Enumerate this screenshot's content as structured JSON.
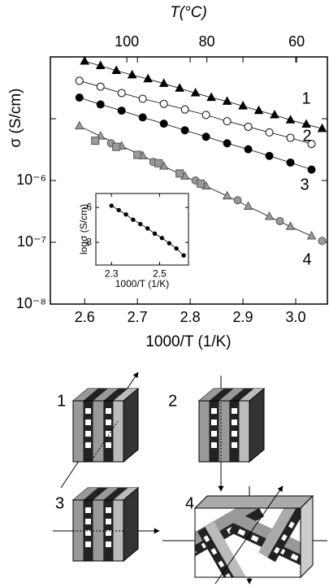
{
  "chart_data": [
    {
      "type": "scatter",
      "ylog": true,
      "xlabel": "1000/T (1/K)",
      "ylabel": "σ (S/cm)",
      "xlim": [
        2.535,
        3.06
      ],
      "ylim": [
        1e-08,
        0.0001
      ],
      "xticks": [
        2.6,
        2.7,
        2.8,
        2.9,
        {
          "value": 3,
          "label": "3.0"
        }
      ],
      "yticks": [
        {
          "value": 1e-08,
          "label": "10⁻⁸"
        },
        {
          "value": 1e-07,
          "label": "10⁻⁷"
        },
        {
          "value": 1e-06,
          "label": "10⁻⁶"
        },
        {
          "value": 1e-05,
          "label": null
        },
        {
          "value": 0.0001,
          "label": null
        }
      ],
      "top_axis": {
        "label": "T(°C)",
        "ticks": [
          100,
          80,
          60
        ]
      },
      "series": [
        {
          "name": "1",
          "color": "#000000",
          "marker": "triangle",
          "filled": true,
          "line": true,
          "x": [
            2.6,
            2.63,
            2.66,
            2.69,
            2.72,
            2.75,
            2.78,
            2.81,
            2.84,
            2.87,
            2.9,
            2.93,
            2.96,
            2.99,
            3.02,
            3.05
          ],
          "values": [
            8.5e-05,
            7.2e-05,
            6e-05,
            5.1e-05,
            4.4e-05,
            3.7e-05,
            3.1e-05,
            2.6e-05,
            2.2e-05,
            1.9e-05,
            1.6e-05,
            1.35e-05,
            1.15e-05,
            9.5e-06,
            8.1e-06,
            6.9e-06
          ]
        },
        {
          "name": "2",
          "color": "#000000",
          "marker": "circle",
          "filled": false,
          "line": true,
          "x": [
            2.59,
            2.63,
            2.67,
            2.71,
            2.75,
            2.79,
            2.83,
            2.87,
            2.91,
            2.95,
            2.99,
            3.03
          ],
          "values": [
            4.1e-05,
            3.3e-05,
            2.6e-05,
            2.1e-05,
            1.74e-05,
            1.41e-05,
            1.15e-05,
            9.1e-06,
            7.4e-06,
            6e-06,
            4.9e-06,
            3.9e-06
          ]
        },
        {
          "name": "3",
          "color": "#000000",
          "marker": "circle",
          "filled": true,
          "line": true,
          "x": [
            2.59,
            2.63,
            2.67,
            2.71,
            2.75,
            2.79,
            2.83,
            2.87,
            2.91,
            2.95,
            2.99,
            3.03
          ],
          "values": [
            2.2e-05,
            1.7e-05,
            1.35e-05,
            1.05e-05,
            8.3e-06,
            6.5e-06,
            5.1e-06,
            4e-06,
            3.2e-06,
            2.5e-06,
            1.95e-06,
            1.5e-06
          ]
        },
        {
          "name": "4",
          "color": "#999999",
          "marker": "triangle",
          "filled": true,
          "line": true,
          "x": [
            2.59,
            2.63,
            2.67,
            2.71,
            2.75,
            2.79,
            2.83,
            2.87,
            2.91,
            2.95,
            2.99,
            3.03
          ],
          "values": [
            7.6e-06,
            5.2e-06,
            3.6e-06,
            2.5e-06,
            1.7e-06,
            1.17e-06,
            8.1e-07,
            5.6e-07,
            3.8e-07,
            2.6e-07,
            1.8e-07,
            1.26e-07
          ]
        },
        {
          "color": "#999999",
          "marker": "circle",
          "filled": true,
          "line": false,
          "x": [
            2.65,
            2.73,
            2.81,
            2.89,
            2.97,
            3.05
          ],
          "values": [
            4e-06,
            2e-06,
            1e-06,
            4.8e-07,
            2.2e-07,
            1.05e-07
          ]
        },
        {
          "color": "#999999",
          "marker": "square",
          "filled": true,
          "line": false,
          "x": [
            2.62,
            2.66,
            2.7,
            2.74,
            2.78,
            2.82
          ],
          "values": [
            4.4e-06,
            3.5e-06,
            2.6e-06,
            1.9e-06,
            1.3e-06,
            8.9e-07
          ]
        }
      ]
    },
    {
      "type": "scatter",
      "ylog": false,
      "xlabel": "1000/T (1/K)",
      "ylabel": "logσ (S/cm)",
      "xlim": [
        2.235,
        2.62
      ],
      "ylim": [
        -9.3,
        -5.2
      ],
      "xticks": [
        2.3,
        2.5
      ],
      "yticks": [
        -6,
        -8
      ],
      "series": [
        {
          "color": "#000000",
          "marker": "circle",
          "filled": true,
          "line": true,
          "x": [
            2.3,
            2.33,
            2.36,
            2.39,
            2.42,
            2.45,
            2.48,
            2.51,
            2.54,
            2.57,
            2.6
          ],
          "values": [
            -5.9,
            -6.15,
            -6.4,
            -6.7,
            -6.95,
            -7.2,
            -7.5,
            -7.75,
            -8.05,
            -8.35,
            -8.75
          ]
        }
      ]
    }
  ],
  "diagrams": [
    {
      "label": "1"
    },
    {
      "label": "2"
    },
    {
      "label": "3"
    },
    {
      "label": "4"
    }
  ]
}
